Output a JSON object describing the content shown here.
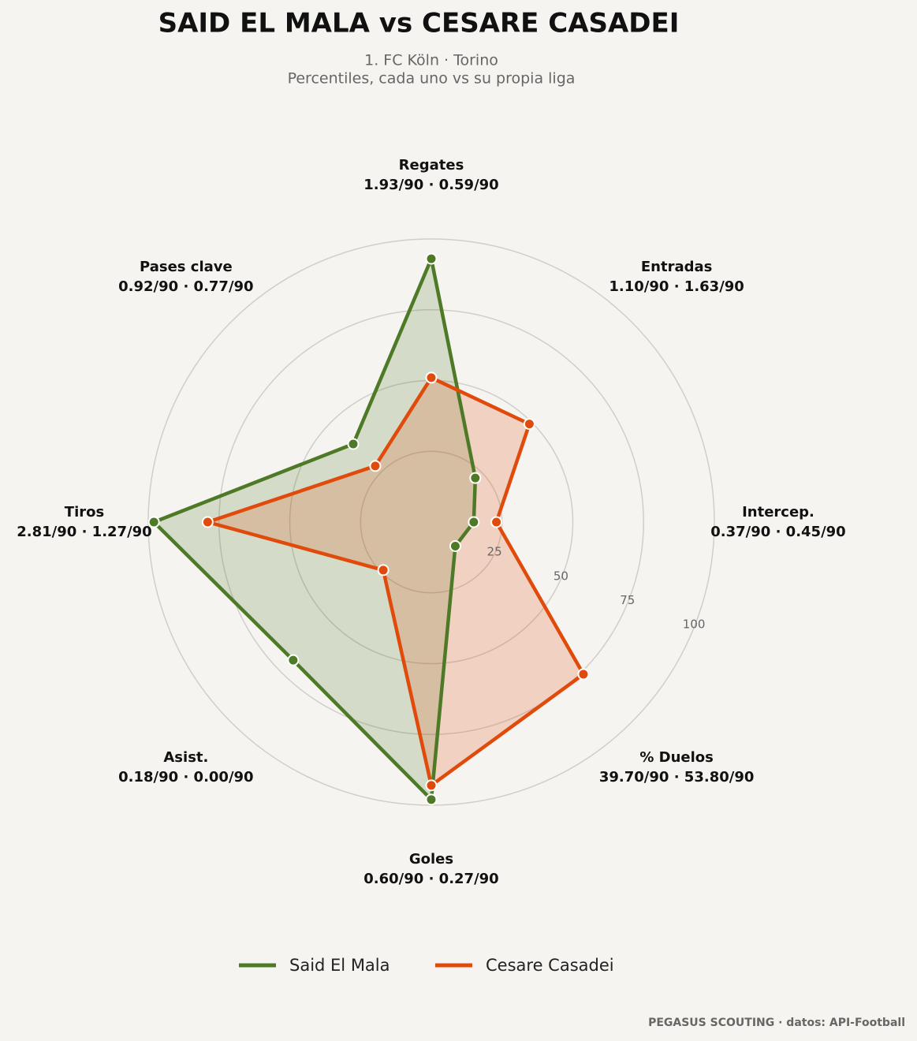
{
  "chart_data": {
    "type": "radar",
    "title": "SAID EL MALA  vs  CESARE CASADEI",
    "subtitle": [
      "1. FC Köln · Torino",
      "Percentiles, cada uno vs su propia liga"
    ],
    "categories": [
      "Regates",
      "Entradas",
      "Intercep.",
      "% Duelos",
      "Goles",
      "Asist.",
      "Tiros",
      "Pases clave"
    ],
    "category_details": [
      "1.93/90 · 0.59/90",
      "1.10/90 · 1.63/90",
      "0.37/90 · 0.45/90",
      "39.70/90 · 53.80/90",
      "0.60/90 · 0.27/90",
      "0.18/90 · 0.00/90",
      "2.81/90 · 1.27/90",
      "0.92/90 · 0.77/90"
    ],
    "series": [
      {
        "name": "Said El Mala",
        "color": "#4e7a27",
        "values": [
          93,
          22,
          15,
          12,
          98,
          69,
          98,
          39
        ]
      },
      {
        "name": "Cesare Casadei",
        "color": "#e04a0a",
        "values": [
          51,
          49,
          23,
          76,
          93,
          24,
          79,
          28
        ]
      }
    ],
    "rlim": [
      0,
      100
    ],
    "rticks": [
      25,
      50,
      75,
      100
    ],
    "grid": true
  },
  "footer": "PEGASUS SCOUTING · datos: API-Football"
}
